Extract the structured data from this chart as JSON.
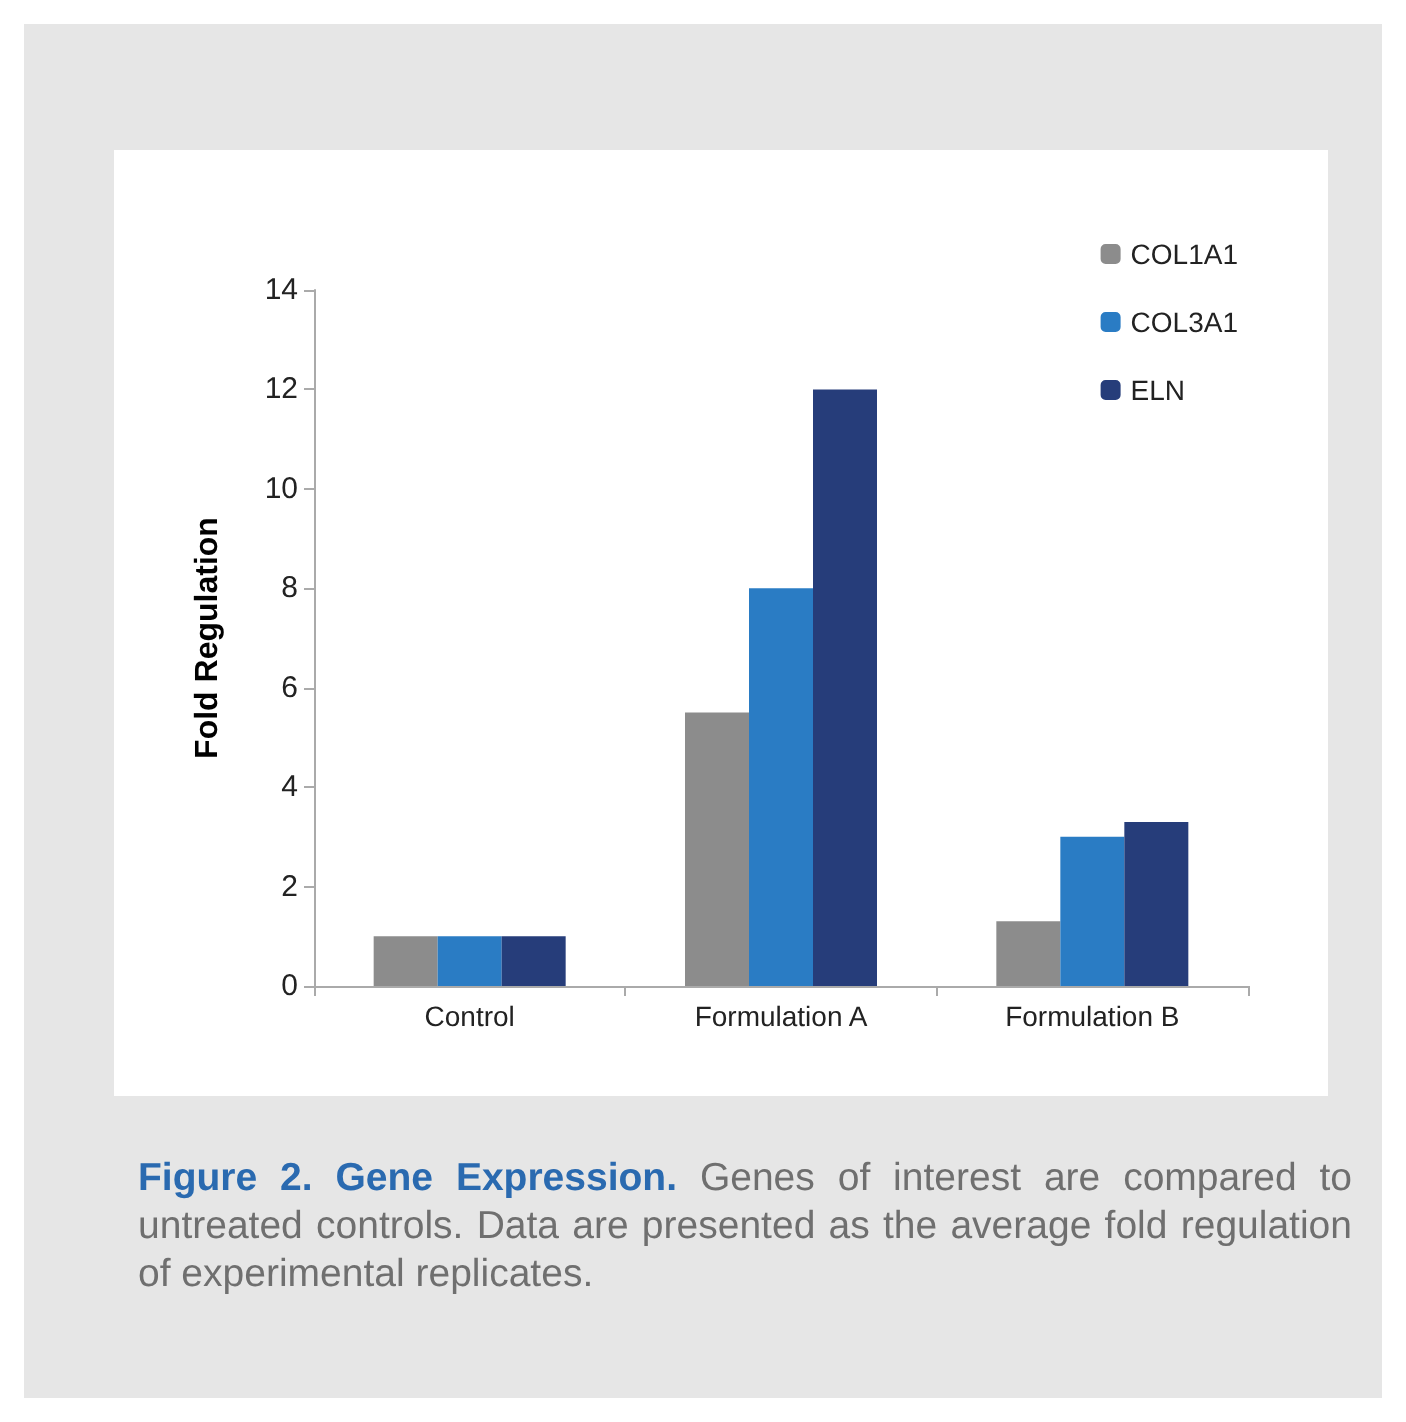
{
  "chart_data": {
    "type": "bar",
    "title": "Figure 2. Gene Expression.",
    "ylabel": "Fold Regulation",
    "categories": [
      "Control",
      "Formulation A",
      "Formulation B"
    ],
    "series": [
      {
        "name": "COL1A1",
        "color": "#8c8c8c",
        "values": [
          1,
          5.5,
          1.3
        ]
      },
      {
        "name": "COL3A1",
        "color": "#2a7cc4",
        "values": [
          1,
          8,
          3
        ]
      },
      {
        "name": "ELN",
        "color": "#263d7a",
        "values": [
          1,
          12,
          3.3
        ]
      }
    ],
    "ylim": [
      0,
      14
    ],
    "yticks": [
      0,
      2,
      4,
      6,
      8,
      10,
      12,
      14
    ],
    "grid": false,
    "legend": "top right",
    "annotations": [
      "Genes of interest are compared to untreated controls. Data are presented as the average fold regulation of experimental replicates."
    ]
  }
}
